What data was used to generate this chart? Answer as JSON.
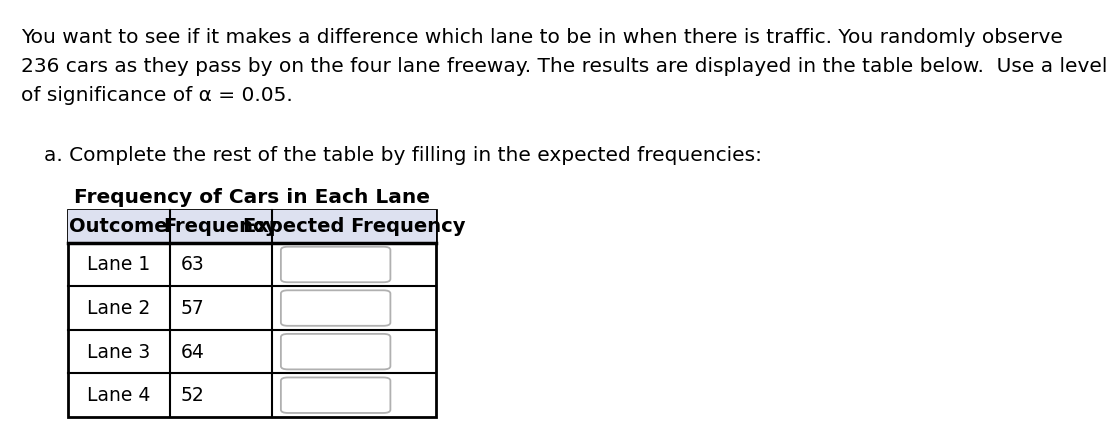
{
  "title_lines": [
    "You want to see if it makes a difference which lane to be in when there is traffic. You randomly observe",
    "236 cars as they pass by on the four lane freeway. The results are displayed in the table below.  Use a level",
    "of significance of α = 0.05."
  ],
  "subtitle_text": "a. Complete the rest of the table by filling in the expected frequencies:",
  "table_title": "Frequency of Cars in Each Lane",
  "col_headers": [
    "Outcome",
    "Frequency",
    "Expected Frequency"
  ],
  "rows": [
    [
      "Lane 1",
      "63"
    ],
    [
      "Lane 2",
      "57"
    ],
    [
      "Lane 3",
      "64"
    ],
    [
      "Lane 4",
      "52"
    ]
  ],
  "background_color": "#ffffff",
  "header_bg_color": "#dde1f0",
  "text_color": "#000000",
  "box_color": "#b0b0b0",
  "font_size_body": 14.5,
  "font_size_table_title": 14.5,
  "font_size_header": 14,
  "font_size_cell": 13.5
}
